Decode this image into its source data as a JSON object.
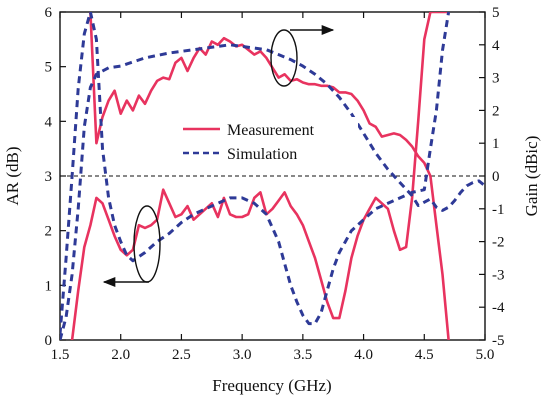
{
  "chart_data": {
    "type": "line",
    "xlabel": "Frequency (GHz)",
    "ylabel_left": "AR (dB)",
    "ylabel_right": "Gain (dBic)",
    "xlim": [
      1.5,
      5.0
    ],
    "ylim_left": [
      0,
      6
    ],
    "ylim_right": [
      -5,
      5
    ],
    "x_ticks": [
      "1.5",
      "2.0",
      "2.5",
      "3.0",
      "3.5",
      "4.0",
      "4.5",
      "5.0"
    ],
    "y_ticks_left": [
      "0",
      "1",
      "2",
      "3",
      "4",
      "5",
      "6"
    ],
    "y_ticks_right": [
      "-5",
      "-4",
      "-3",
      "-2",
      "-1",
      "0",
      "1",
      "2",
      "3",
      "4",
      "5"
    ],
    "reference_line": {
      "axis": "left",
      "value": 3,
      "style": "dashed"
    },
    "legend": [
      {
        "label": "Measurement",
        "color": "#e8335f",
        "style": "solid"
      },
      {
        "label": "Simulation",
        "color": "#2e3a97",
        "style": "dashed"
      }
    ],
    "series": [
      {
        "name": "Measurement",
        "quantity": "AR",
        "axis": "left",
        "color": "#e8335f",
        "style": "solid",
        "x": [
          1.6,
          1.65,
          1.7,
          1.75,
          1.8,
          1.85,
          1.9,
          1.95,
          2.0,
          2.05,
          2.1,
          2.15,
          2.2,
          2.25,
          2.3,
          2.35,
          2.4,
          2.45,
          2.5,
          2.55,
          2.6,
          2.65,
          2.7,
          2.75,
          2.8,
          2.85,
          2.9,
          2.95,
          3.0,
          3.05,
          3.1,
          3.15,
          3.2,
          3.25,
          3.3,
          3.35,
          3.4,
          3.45,
          3.5,
          3.55,
          3.6,
          3.65,
          3.7,
          3.75,
          3.8,
          3.85,
          3.9,
          3.95,
          4.0,
          4.05,
          4.1,
          4.15,
          4.2,
          4.25,
          4.3,
          4.35,
          4.4,
          4.45,
          4.5,
          4.55,
          4.6,
          4.65,
          4.7
        ],
        "y": [
          0.0,
          0.9,
          1.7,
          2.1,
          2.6,
          2.5,
          2.2,
          1.9,
          1.65,
          1.55,
          1.65,
          2.1,
          2.05,
          2.1,
          2.2,
          2.75,
          2.5,
          2.25,
          2.3,
          2.45,
          2.2,
          2.3,
          2.4,
          2.5,
          2.25,
          2.6,
          2.3,
          2.25,
          2.25,
          2.3,
          2.6,
          2.7,
          2.3,
          2.4,
          2.55,
          2.7,
          2.45,
          2.3,
          2.1,
          1.8,
          1.5,
          1.1,
          0.7,
          0.4,
          0.4,
          0.9,
          1.5,
          1.9,
          2.2,
          2.4,
          2.6,
          2.5,
          2.4,
          2.0,
          1.65,
          1.7,
          2.6,
          4.0,
          5.5,
          6.0,
          6.0,
          6.0,
          6.0
        ]
      },
      {
        "name": "Measurement",
        "quantity": "Gain",
        "axis": "right",
        "color": "#e8335f",
        "style": "solid",
        "x": [
          1.75,
          1.8,
          1.85,
          1.9,
          1.95,
          2.0,
          2.05,
          2.1,
          2.15,
          2.2,
          2.25,
          2.3,
          2.35,
          2.4,
          2.45,
          2.5,
          2.55,
          2.6,
          2.65,
          2.7,
          2.75,
          2.8,
          2.85,
          2.9,
          2.95,
          3.0,
          3.05,
          3.1,
          3.15,
          3.2,
          3.25,
          3.3,
          3.35,
          3.4,
          3.45,
          3.5,
          3.55,
          3.6,
          3.65,
          3.7,
          3.75,
          3.8,
          3.85,
          3.9,
          3.95,
          4.0,
          4.05,
          4.1,
          4.15,
          4.2,
          4.25,
          4.3,
          4.35,
          4.4,
          4.45,
          4.5,
          4.55,
          4.6,
          4.65,
          4.7
        ],
        "y": [
          5.0,
          1.0,
          1.8,
          2.3,
          2.6,
          1.9,
          2.3,
          2.0,
          2.45,
          2.2,
          2.6,
          2.9,
          3.0,
          2.95,
          3.45,
          3.6,
          3.2,
          3.6,
          3.9,
          3.7,
          4.1,
          4.0,
          4.2,
          4.1,
          3.95,
          4.0,
          3.85,
          3.7,
          3.8,
          3.6,
          3.3,
          3.0,
          3.1,
          2.9,
          2.95,
          2.85,
          2.8,
          2.8,
          2.75,
          2.75,
          2.7,
          2.55,
          2.55,
          2.5,
          2.3,
          2.0,
          1.6,
          1.5,
          1.2,
          1.25,
          1.3,
          1.25,
          1.1,
          0.9,
          0.6,
          0.4,
          0.0,
          -1.5,
          -3.0,
          -5.0
        ]
      },
      {
        "name": "Simulation",
        "quantity": "AR",
        "axis": "left",
        "color": "#2e3a97",
        "style": "dashed",
        "x": [
          1.5,
          1.55,
          1.6,
          1.65,
          1.7,
          1.75,
          1.8,
          1.85,
          1.9,
          1.95,
          2.0,
          2.05,
          2.1,
          2.2,
          2.3,
          2.4,
          2.5,
          2.6,
          2.7,
          2.8,
          2.9,
          3.0,
          3.1,
          3.2,
          3.3,
          3.35,
          3.4,
          3.45,
          3.5,
          3.55,
          3.6,
          3.65,
          3.7,
          3.75,
          3.8,
          3.85,
          3.9,
          4.0,
          4.1,
          4.2,
          4.3,
          4.4,
          4.5,
          4.55,
          4.6,
          4.65,
          4.7
        ],
        "y": [
          0.1,
          1.5,
          3.0,
          4.6,
          5.6,
          6.0,
          5.5,
          3.5,
          2.6,
          2.1,
          1.8,
          1.55,
          1.45,
          1.6,
          1.8,
          1.95,
          2.15,
          2.3,
          2.4,
          2.5,
          2.6,
          2.6,
          2.5,
          2.3,
          1.8,
          1.4,
          1.0,
          0.7,
          0.45,
          0.3,
          0.3,
          0.5,
          0.9,
          1.3,
          1.6,
          1.8,
          2.0,
          2.2,
          2.4,
          2.5,
          2.6,
          2.7,
          2.75,
          3.5,
          4.2,
          5.3,
          6.0
        ]
      },
      {
        "name": "Simulation",
        "quantity": "Gain",
        "axis": "right",
        "color": "#2e3a97",
        "style": "dashed",
        "x": [
          1.5,
          1.55,
          1.6,
          1.65,
          1.7,
          1.75,
          1.8,
          1.9,
          2.0,
          2.2,
          2.4,
          2.6,
          2.8,
          2.9,
          3.0,
          3.1,
          3.2,
          3.3,
          3.4,
          3.5,
          3.6,
          3.7,
          3.8,
          3.9,
          4.0,
          4.1,
          4.2,
          4.3,
          4.4,
          4.45,
          4.5,
          4.55,
          4.6,
          4.65,
          4.7,
          4.75,
          4.8,
          4.85,
          4.9,
          4.95,
          5.0
        ],
        "y": [
          -5.0,
          -4.3,
          -3.0,
          -1.0,
          1.5,
          2.7,
          3.1,
          3.3,
          3.35,
          3.6,
          3.75,
          3.85,
          3.95,
          4.0,
          3.95,
          3.9,
          3.85,
          3.7,
          3.55,
          3.35,
          3.1,
          2.8,
          2.4,
          1.9,
          1.3,
          0.7,
          0.2,
          -0.2,
          -0.6,
          -0.9,
          -0.8,
          -0.7,
          -0.95,
          -1.05,
          -0.95,
          -0.75,
          -0.5,
          -0.3,
          -0.2,
          -0.15,
          -0.3
        ]
      }
    ],
    "annotations": [
      {
        "shape": "ellipse",
        "points_to": "right-axis",
        "near": "Gain peak"
      },
      {
        "shape": "ellipse",
        "points_to": "left-axis",
        "near": "AR dip"
      }
    ]
  }
}
